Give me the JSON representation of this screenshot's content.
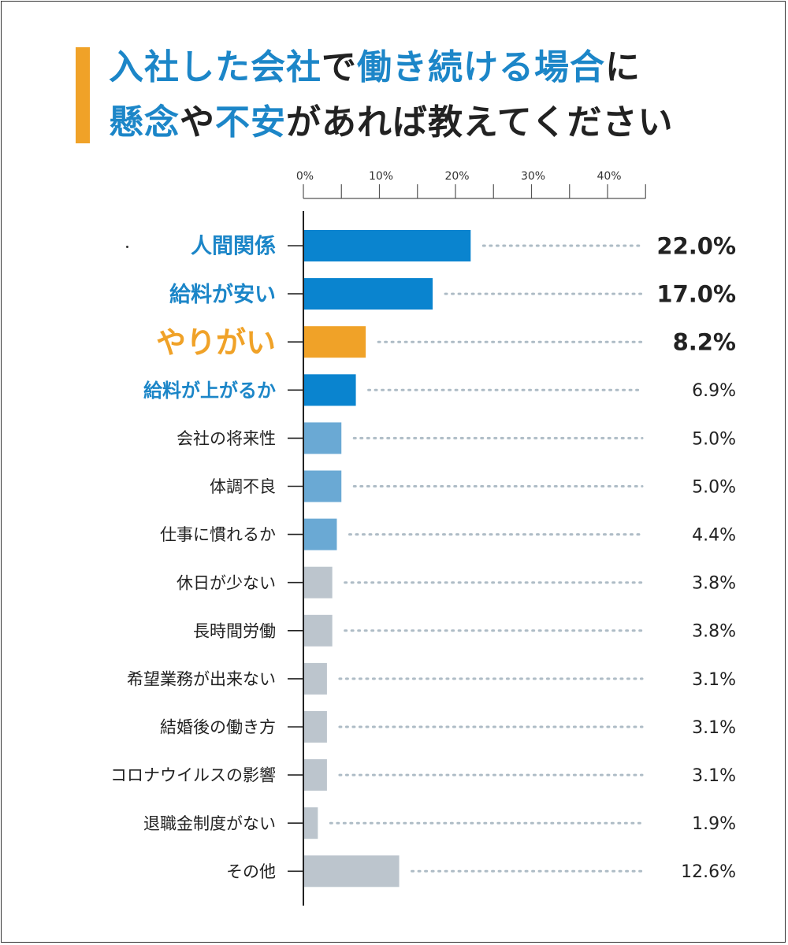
{
  "title": {
    "line1": [
      {
        "text": "入社した会社",
        "color": "#1c86c8"
      },
      {
        "text": "で",
        "color": "#222222"
      },
      {
        "text": "働き続ける場合",
        "color": "#1c86c8"
      },
      {
        "text": "に",
        "color": "#222222"
      }
    ],
    "line2": [
      {
        "text": "懸念",
        "color": "#1c86c8"
      },
      {
        "text": "や",
        "color": "#222222"
      },
      {
        "text": "不安",
        "color": "#1c86c8"
      },
      {
        "text": "があれば教えてください",
        "color": "#222222"
      }
    ]
  },
  "colors": {
    "blue_dark": "#0a84cf",
    "blue_light": "#6aa9d4",
    "orange": "#f0a228",
    "gray": "#bcc5cd",
    "label_blue": "#1c86c8",
    "label_orange": "#f0a228",
    "label_dark": "#222222",
    "dots": "#aebcc6"
  },
  "chart_data": {
    "type": "bar",
    "orientation": "horizontal",
    "xlim": [
      0,
      45
    ],
    "ticks": [
      {
        "value": 0,
        "label": "0%"
      },
      {
        "value": 10,
        "label": "10%"
      },
      {
        "value": 20,
        "label": "20%"
      },
      {
        "value": 30,
        "label": "30%"
      },
      {
        "value": 40,
        "label": "40%"
      }
    ],
    "grid": false,
    "categories": [
      {
        "label": "人間関係",
        "value": 22.0,
        "value_label": "22.0%",
        "bar": "blue_dark",
        "label_color": "label_blue",
        "emphasis": "strong"
      },
      {
        "label": "給料が安い",
        "value": 17.0,
        "value_label": "17.0%",
        "bar": "blue_dark",
        "label_color": "label_blue",
        "emphasis": "strong"
      },
      {
        "label": "やりがい",
        "value": 8.2,
        "value_label": "8.2%",
        "bar": "orange",
        "label_color": "label_orange",
        "emphasis": "huge"
      },
      {
        "label": "給料が上がるか",
        "value": 6.9,
        "value_label": "6.9%",
        "bar": "blue_dark",
        "label_color": "label_blue",
        "emphasis": "medium"
      },
      {
        "label": "会社の将来性",
        "value": 5.0,
        "value_label": "5.0%",
        "bar": "blue_light",
        "label_color": "label_dark",
        "emphasis": "normal"
      },
      {
        "label": "体調不良",
        "value": 5.0,
        "value_label": "5.0%",
        "bar": "blue_light",
        "label_color": "label_dark",
        "emphasis": "normal"
      },
      {
        "label": "仕事に慣れるか",
        "value": 4.4,
        "value_label": "4.4%",
        "bar": "blue_light",
        "label_color": "label_dark",
        "emphasis": "normal"
      },
      {
        "label": "休日が少ない",
        "value": 3.8,
        "value_label": "3.8%",
        "bar": "gray",
        "label_color": "label_dark",
        "emphasis": "normal"
      },
      {
        "label": "長時間労働",
        "value": 3.8,
        "value_label": "3.8%",
        "bar": "gray",
        "label_color": "label_dark",
        "emphasis": "normal"
      },
      {
        "label": "希望業務が出来ない",
        "value": 3.1,
        "value_label": "3.1%",
        "bar": "gray",
        "label_color": "label_dark",
        "emphasis": "normal"
      },
      {
        "label": "結婚後の働き方",
        "value": 3.1,
        "value_label": "3.1%",
        "bar": "gray",
        "label_color": "label_dark",
        "emphasis": "normal"
      },
      {
        "label": "コロナウイルスの影響",
        "value": 3.1,
        "value_label": "3.1%",
        "bar": "gray",
        "label_color": "label_dark",
        "emphasis": "normal"
      },
      {
        "label": "退職金制度がない",
        "value": 1.9,
        "value_label": "1.9%",
        "bar": "gray",
        "label_color": "label_dark",
        "emphasis": "normal"
      },
      {
        "label": "その他",
        "value": 12.6,
        "value_label": "12.6%",
        "bar": "gray",
        "label_color": "label_dark",
        "emphasis": "normal"
      }
    ]
  }
}
